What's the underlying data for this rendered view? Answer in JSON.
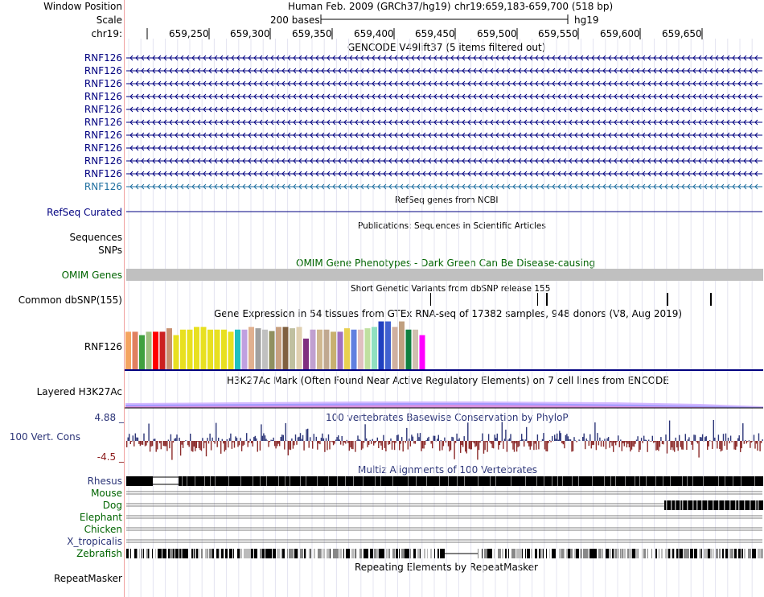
{
  "ruler": {
    "window_position_label": "Window Position",
    "scale_label": "Scale",
    "chrom_label": "chr19:",
    "assembly_text": "Human Feb. 2009 (GRCh37/hg19)",
    "position_text": "chr19:659,183-659,700 (518 bp)",
    "scale_text": "200 bases",
    "db_text": "hg19",
    "ticks": [
      "659,250",
      "659,300",
      "659,350",
      "659,400",
      "659,450",
      "659,500",
      "659,550",
      "659,600",
      "659,650"
    ]
  },
  "gencode": {
    "title": "GENCODE V49lift37 (5 items filtered out)",
    "rows": [
      "RNF126",
      "RNF126",
      "RNF126",
      "RNF126",
      "RNF126",
      "RNF126",
      "RNF126",
      "RNF126",
      "RNF126",
      "RNF126",
      "RNF126"
    ],
    "color": "#000080",
    "last_color": "#1f6fa0"
  },
  "refseq": {
    "title": "RefSeq genes from NCBI",
    "label": "RefSeq Curated"
  },
  "publications": {
    "title": "Publications: Sequences in Scientific Articles",
    "label_sequences": "Sequences",
    "label_snps": "SNPs"
  },
  "omim": {
    "title": "OMIM Gene Phenotypes - Dark Green Can Be Disease-causing",
    "label": "OMIM Genes",
    "bar_color": "#c0c0c0"
  },
  "dbsnp": {
    "title": "Short Genetic Variants from dbSNP release 155",
    "label": "Common dbSNP(155)"
  },
  "gtex": {
    "title": "Gene Expression in 54 tissues from GTEx RNA-seq of 17382 samples, 948 donors (V8, Aug 2019)",
    "label": "RNF126",
    "bar_colors": [
      "#f4a460",
      "#e08060",
      "#40a040",
      "#a0c080",
      "#ff0000",
      "#cc2020",
      "#c89070",
      "#e8e020",
      "#e8e020",
      "#e8e020",
      "#e8e020",
      "#e8e020",
      "#e8e020",
      "#e8e020",
      "#e8e020",
      "#e8e020",
      "#20c0c0",
      "#c0a0e0",
      "#e0b090",
      "#a0a0a0",
      "#c0c0c0",
      "#909060",
      "#c8a080",
      "#806040",
      "#c0c0a0",
      "#e0d0b0",
      "#803080",
      "#c0a0d0",
      "#d0b890",
      "#c0a890",
      "#c8b070",
      "#a070c0",
      "#e8d050",
      "#6080e0",
      "#e0c0c0",
      "#c0e0a0",
      "#90e0c0",
      "#2040c0",
      "#4060d0",
      "#d0b0a0",
      "#c0a080",
      "#108040",
      "#d0c0b0",
      "#ff00ff"
    ],
    "bar_heights": [
      0.55,
      0.55,
      0.5,
      0.55,
      0.55,
      0.55,
      0.6,
      0.5,
      0.58,
      0.58,
      0.62,
      0.62,
      0.58,
      0.58,
      0.58,
      0.55,
      0.58,
      0.58,
      0.62,
      0.6,
      0.58,
      0.56,
      0.62,
      0.62,
      0.6,
      0.62,
      0.45,
      0.58,
      0.58,
      0.58,
      0.55,
      0.55,
      0.6,
      0.58,
      0.58,
      0.6,
      0.62,
      0.7,
      0.7,
      0.62,
      0.7,
      0.58,
      0.58,
      0.5
    ]
  },
  "h3k27ac": {
    "title": "H3K27Ac Mark (Often Found Near Active Regulatory Elements) on 7 cell lines from ENCODE",
    "label": "Layered H3K27Ac"
  },
  "conservation": {
    "title": "100 vertebrates Basewise Conservation by PhyloP",
    "label": "100 Vert. Cons",
    "max_label": "4.88 _",
    "min_label": "-4.5 _",
    "pos_color": "#2c3578",
    "neg_color": "#8b2a2a"
  },
  "multiz": {
    "title": "Multiz Alignments of 100 Vertebrates",
    "species": [
      {
        "name": "Rhesus",
        "color": "#2c3578"
      },
      {
        "name": "Mouse",
        "color": "#006400"
      },
      {
        "name": "Dog",
        "color": "#006400"
      },
      {
        "name": "Elephant",
        "color": "#006400"
      },
      {
        "name": "Chicken",
        "color": "#006400"
      },
      {
        "name": "X_tropicalis",
        "color": "#2c3578"
      },
      {
        "name": "Zebrafish",
        "color": "#006400"
      }
    ]
  },
  "repeatmasker": {
    "title": "Repeating Elements by RepeatMasker",
    "label": "RepeatMasker"
  }
}
